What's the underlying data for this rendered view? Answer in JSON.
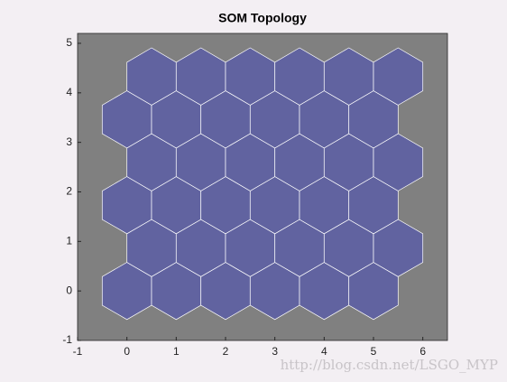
{
  "chart_data": {
    "type": "hextop",
    "title": "SOM Topology",
    "x": [
      0,
      1,
      2,
      3,
      4,
      5,
      0.5,
      1.5,
      2.5,
      3.5,
      4.5,
      5.5,
      0,
      1,
      2,
      3,
      4,
      5,
      0.5,
      1.5,
      2.5,
      3.5,
      4.5,
      5.5,
      0,
      1,
      2,
      3,
      4,
      5,
      0.5,
      1.5,
      2.5,
      3.5,
      4.5,
      5.5
    ],
    "y": [
      0,
      0,
      0,
      0,
      0,
      0,
      0.866,
      0.866,
      0.866,
      0.866,
      0.866,
      0.866,
      1.732,
      1.732,
      1.732,
      1.732,
      1.732,
      1.732,
      2.598,
      2.598,
      2.598,
      2.598,
      2.598,
      2.598,
      3.464,
      3.464,
      3.464,
      3.464,
      3.464,
      3.464,
      4.33,
      4.33,
      4.33,
      4.33,
      4.33,
      4.33
    ],
    "color": "#6163a0",
    "edgecolor": "#ffffff",
    "background": "#808080",
    "xlim": [
      -1,
      6.5
    ],
    "ylim": [
      -1,
      5.2
    ],
    "xticks": [
      -1,
      0,
      1,
      2,
      3,
      4,
      5,
      6
    ],
    "yticks": [
      -1,
      0,
      1,
      2,
      3,
      4,
      5
    ]
  },
  "watermark": "http://blog.csdn.net/LSGO_MYP"
}
